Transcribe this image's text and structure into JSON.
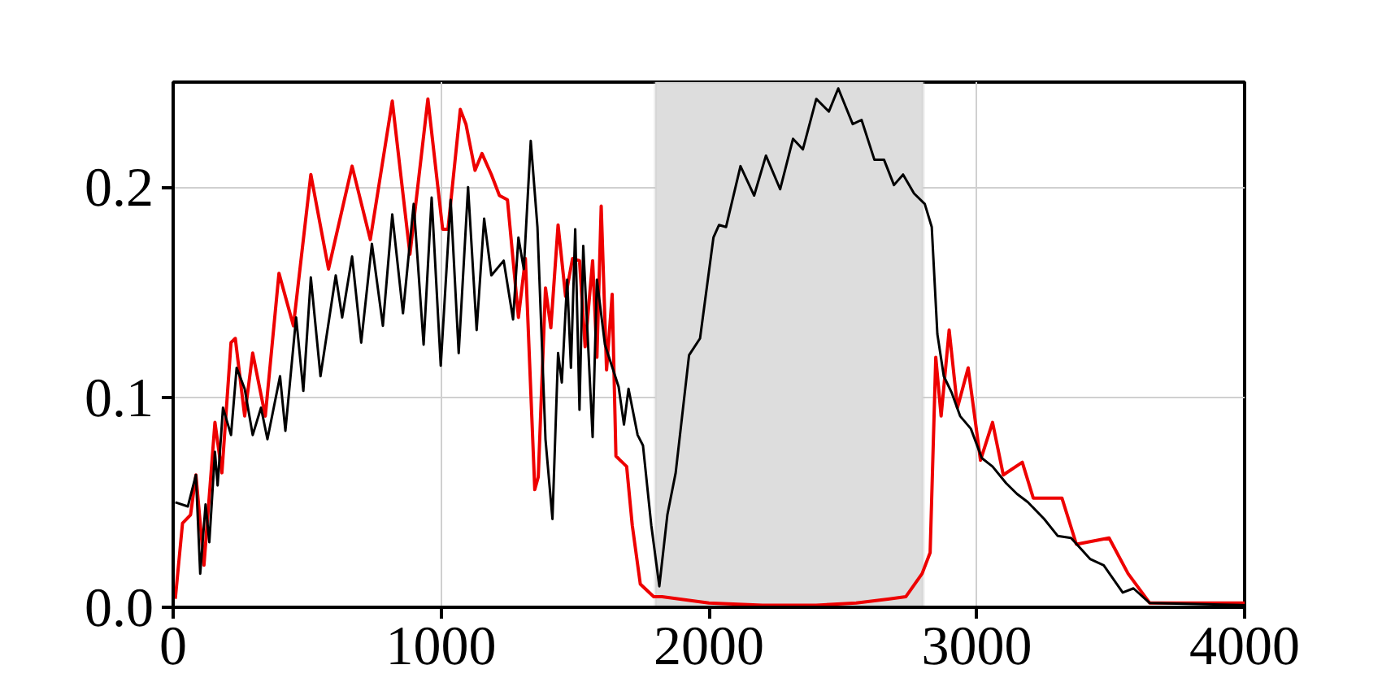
{
  "chart_data": {
    "type": "line",
    "xlim": [
      0,
      4000
    ],
    "ylim": [
      0,
      0.25
    ],
    "xticks": [
      0,
      1000,
      2000,
      3000,
      4000
    ],
    "yticks": [
      {
        "value": 0,
        "label": "0.0"
      },
      {
        "value": 0.1,
        "label": "0.1"
      },
      {
        "value": 0.2,
        "label": "0.2"
      }
    ],
    "grid": true,
    "line_style": "solid",
    "marker": "none",
    "bands": [
      {
        "axis": "x",
        "from": 1800,
        "to": 2800,
        "color": "#dddddd"
      }
    ],
    "series": [
      {
        "color": "#000000",
        "x": [
          8,
          55,
          85,
          101,
          121,
          135,
          156,
          166,
          186,
          216,
          237,
          267,
          297,
          328,
          352,
          399,
          419,
          459,
          486,
          514,
          550,
          607,
          631,
          668,
          702,
          742,
          783,
          818,
          858,
          898,
          935,
          965,
          999,
          1036,
          1066,
          1101,
          1133,
          1161,
          1188,
          1234,
          1269,
          1289,
          1309,
          1335,
          1360,
          1390,
          1416,
          1437,
          1451,
          1471,
          1485,
          1501,
          1517,
          1531,
          1566,
          1582,
          1612,
          1663,
          1683,
          1700,
          1734,
          1754,
          1785,
          1815,
          1845,
          1876,
          1926,
          1967,
          2017,
          2038,
          2064,
          2118,
          2169,
          2213,
          2266,
          2314,
          2351,
          2401,
          2448,
          2483,
          2537,
          2570,
          2618,
          2654,
          2691,
          2725,
          2766,
          2806,
          2832,
          2853,
          2877,
          2907,
          2938,
          2978,
          3019,
          3059,
          3110,
          3150,
          3191,
          3252,
          3302,
          3352,
          3423,
          3474,
          3545,
          3585,
          3646,
          4000
        ],
        "values": [
          0.05,
          0.048,
          0.063,
          0.016,
          0.049,
          0.031,
          0.074,
          0.058,
          0.095,
          0.082,
          0.114,
          0.104,
          0.082,
          0.095,
          0.08,
          0.11,
          0.084,
          0.138,
          0.103,
          0.157,
          0.11,
          0.158,
          0.138,
          0.167,
          0.126,
          0.173,
          0.134,
          0.187,
          0.14,
          0.192,
          0.125,
          0.195,
          0.115,
          0.194,
          0.121,
          0.2,
          0.132,
          0.185,
          0.158,
          0.165,
          0.137,
          0.176,
          0.161,
          0.222,
          0.181,
          0.08,
          0.042,
          0.121,
          0.107,
          0.156,
          0.114,
          0.18,
          0.094,
          0.172,
          0.081,
          0.156,
          0.125,
          0.105,
          0.087,
          0.104,
          0.082,
          0.077,
          0.039,
          0.01,
          0.044,
          0.064,
          0.12,
          0.128,
          0.176,
          0.182,
          0.181,
          0.21,
          0.196,
          0.215,
          0.199,
          0.223,
          0.218,
          0.242,
          0.236,
          0.247,
          0.23,
          0.232,
          0.213,
          0.213,
          0.201,
          0.206,
          0.197,
          0.192,
          0.181,
          0.13,
          0.11,
          0.102,
          0.091,
          0.085,
          0.071,
          0.067,
          0.059,
          0.054,
          0.05,
          0.042,
          0.034,
          0.033,
          0.023,
          0.02,
          0.007,
          0.009,
          0.002,
          0.001
        ]
      },
      {
        "color": "#ee0000",
        "x": [
          8,
          35,
          65,
          85,
          115,
          156,
          182,
          216,
          232,
          267,
          297,
          344,
          395,
          449,
          514,
          580,
          668,
          736,
          818,
          884,
          951,
          1006,
          1026,
          1072,
          1093,
          1127,
          1153,
          1188,
          1218,
          1248,
          1289,
          1315,
          1350,
          1363,
          1390,
          1410,
          1437,
          1465,
          1491,
          1517,
          1538,
          1566,
          1582,
          1598,
          1618,
          1639,
          1653,
          1693,
          1714,
          1744,
          1794,
          1825,
          2000,
          2200,
          2400,
          2550,
          2674,
          2735,
          2796,
          2826,
          2847,
          2867,
          2897,
          2928,
          2968,
          3014,
          3059,
          3099,
          3170,
          3211,
          3318,
          3372,
          3494,
          3565,
          3646,
          3768,
          4000
        ],
        "values": [
          0.004,
          0.04,
          0.044,
          0.063,
          0.02,
          0.088,
          0.064,
          0.126,
          0.128,
          0.091,
          0.121,
          0.091,
          0.159,
          0.134,
          0.206,
          0.161,
          0.21,
          0.175,
          0.241,
          0.168,
          0.242,
          0.18,
          0.18,
          0.237,
          0.23,
          0.208,
          0.216,
          0.206,
          0.196,
          0.194,
          0.138,
          0.166,
          0.056,
          0.062,
          0.152,
          0.133,
          0.182,
          0.148,
          0.166,
          0.165,
          0.124,
          0.165,
          0.119,
          0.191,
          0.113,
          0.149,
          0.072,
          0.067,
          0.039,
          0.011,
          0.005,
          0.005,
          0.002,
          0.001,
          0.001,
          0.002,
          0.004,
          0.005,
          0.016,
          0.026,
          0.119,
          0.091,
          0.132,
          0.095,
          0.114,
          0.07,
          0.088,
          0.063,
          0.069,
          0.052,
          0.052,
          0.03,
          0.033,
          0.016,
          0.002,
          0.002,
          0.002
        ]
      }
    ]
  }
}
